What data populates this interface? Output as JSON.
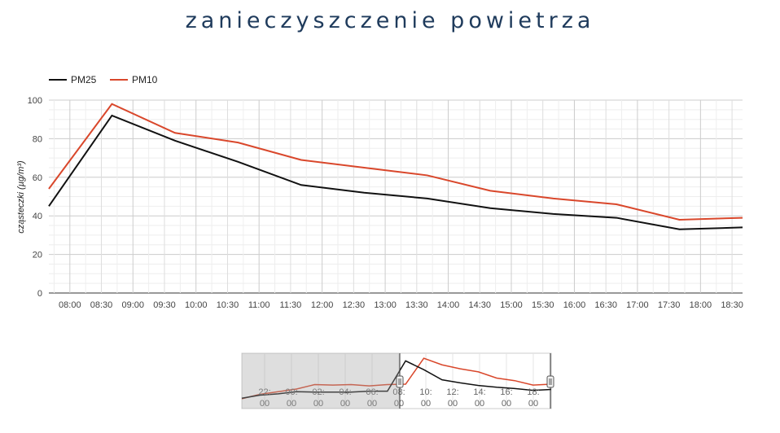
{
  "title": "zanieczyszczenie powietrza",
  "colors": {
    "pm25": "#111111",
    "pm10": "#d9472b",
    "title": "#1f3b5c"
  },
  "chart_data": {
    "type": "line",
    "ylabel": "cząsteczki (µg/m³)",
    "ylim": [
      0,
      100
    ],
    "yticks": [
      0,
      20,
      40,
      60,
      80,
      100
    ],
    "xlim": [
      "07:40",
      "18:40"
    ],
    "xticks": [
      "08:00",
      "08:30",
      "09:00",
      "09:30",
      "10:00",
      "10:30",
      "11:00",
      "11:30",
      "12:00",
      "12:30",
      "13:00",
      "13:30",
      "14:00",
      "14:30",
      "15:00",
      "15:30",
      "16:00",
      "16:30",
      "17:00",
      "17:30",
      "18:00",
      "18:30"
    ],
    "legend_position": "top-left",
    "grid": true,
    "x": [
      "07:40",
      "08:40",
      "09:40",
      "10:40",
      "11:40",
      "12:40",
      "13:40",
      "14:40",
      "15:40",
      "16:40",
      "17:40",
      "18:40"
    ],
    "series": [
      {
        "name": "PM25",
        "values": [
          45,
          92,
          79,
          68,
          56,
          52,
          49,
          44,
          41,
          39,
          33,
          34
        ]
      },
      {
        "name": "PM10",
        "values": [
          54,
          98,
          83,
          78,
          69,
          65,
          61,
          53,
          49,
          46,
          38,
          39
        ]
      }
    ]
  },
  "navigator": {
    "ticks": [
      "22:\n00",
      "00:\n00",
      "02:\n00",
      "04:\n00",
      "06:\n00",
      "08:\n00",
      "10:\n00",
      "12:\n00",
      "14:\n00",
      "16:\n00",
      "18:\n00"
    ],
    "pm25": [
      5,
      12,
      15,
      20,
      19,
      19,
      19,
      21,
      21,
      90,
      70,
      47,
      40,
      34,
      30,
      27,
      23,
      25
    ],
    "pm10": [
      4,
      14,
      20,
      26,
      36,
      35,
      36,
      33,
      36,
      37,
      96,
      81,
      72,
      65,
      51,
      45,
      35,
      37
    ]
  }
}
